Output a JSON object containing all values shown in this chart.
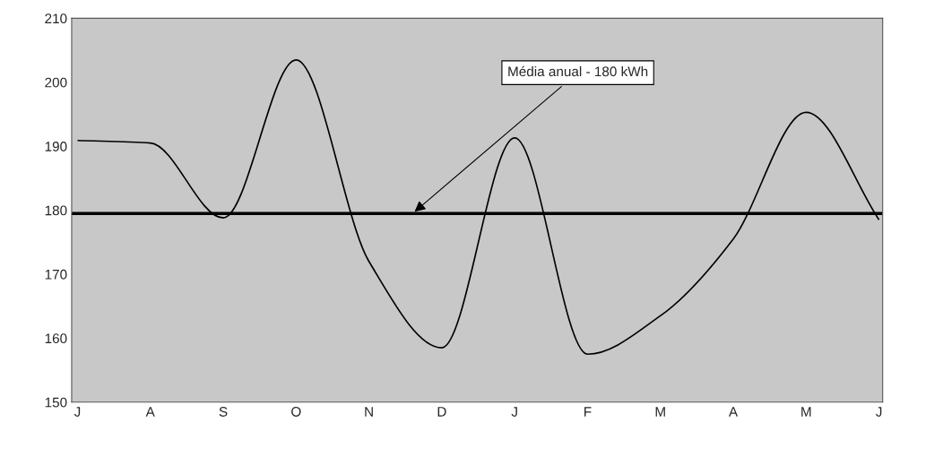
{
  "chart_data": {
    "type": "line",
    "categories": [
      "J",
      "A",
      "S",
      "O",
      "N",
      "D",
      "J",
      "F",
      "M",
      "A",
      "M",
      "J"
    ],
    "series": [
      {
        "color": "#000000",
        "values": [
          190.9,
          190.5,
          178.8,
          203.5,
          172,
          158.5,
          191.3,
          157.5,
          163.5,
          175.5,
          195.3,
          178.5
        ]
      }
    ],
    "ylim": [
      150,
      210
    ],
    "yticks": [
      150,
      160,
      170,
      180,
      190,
      200,
      210
    ],
    "legend": false,
    "marker": "none",
    "line_style": "solid",
    "ref_lines": [
      {
        "axis": "y",
        "value": 179.5,
        "label": "Média anual - 180 kWh",
        "color": "#000000"
      }
    ]
  }
}
